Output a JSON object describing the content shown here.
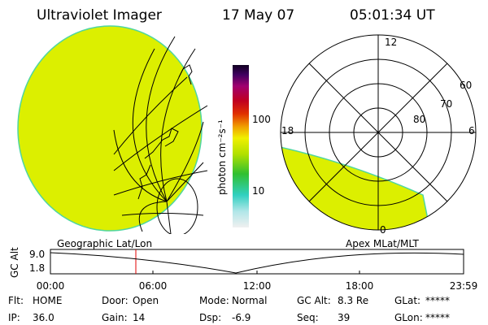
{
  "header": {
    "title": "Ultraviolet Imager",
    "date": "17 May 07",
    "time": "05:01:34 UT"
  },
  "colorbar": {
    "unit": "photon cm⁻²s⁻¹",
    "ticks": [
      "100",
      "10"
    ]
  },
  "polar_plot": {
    "mlt_labels": [
      "12",
      "18",
      "6",
      "0"
    ],
    "lat_labels": [
      "60",
      "70",
      "80"
    ]
  },
  "panel_labels": {
    "left": "Geographic Lat/Lon",
    "right": "Apex MLat/MLT"
  },
  "altitude_plot": {
    "ylabel": "GC Alt",
    "yticks": [
      "9.0",
      "1.8"
    ],
    "xticks": [
      "00:00",
      "06:00",
      "12:00",
      "18:00",
      "23:59"
    ]
  },
  "footer": [
    [
      {
        "label": "Flt:",
        "value": "HOME"
      },
      {
        "label": "Door:",
        "value": "Open"
      },
      {
        "label": "Mode:",
        "value": "Normal"
      },
      {
        "label": "GC Alt:",
        "value": "8.3 Re"
      },
      {
        "label": "GLat:",
        "value": "*****"
      }
    ],
    [
      {
        "label": "IP:",
        "value": "36.0"
      },
      {
        "label": "Gain:",
        "value": "14"
      },
      {
        "label": "Dsp:",
        "value": "-6.9"
      },
      {
        "label": "Seq:",
        "value": "39"
      },
      {
        "label": "GLon:",
        "value": "*****"
      }
    ]
  ]
}
